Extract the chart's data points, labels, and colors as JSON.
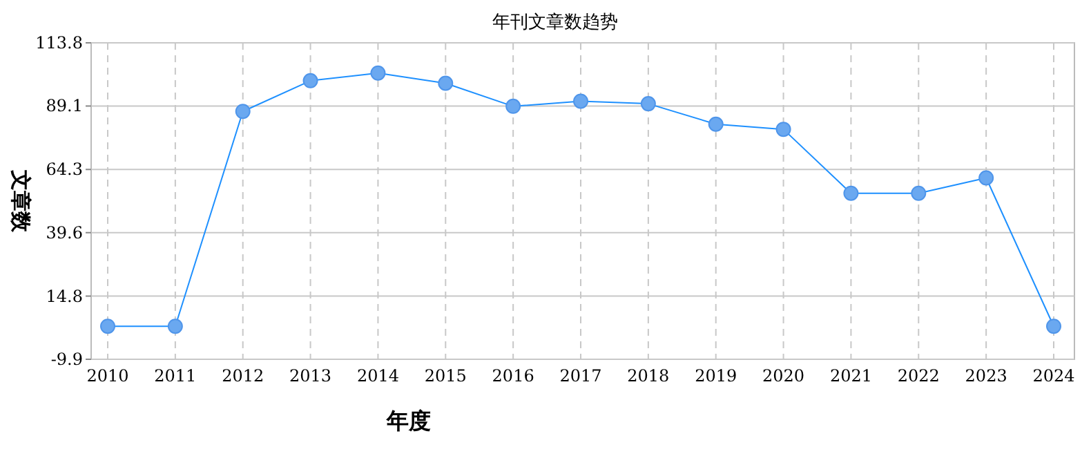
{
  "chart_data": {
    "type": "line",
    "title": "年刊文章数趋势",
    "xlabel": "年度",
    "ylabel": "文章数",
    "categories": [
      "2010",
      "2011",
      "2012",
      "2013",
      "2014",
      "2015",
      "2016",
      "2017",
      "2018",
      "2019",
      "2020",
      "2021",
      "2022",
      "2023",
      "2024"
    ],
    "series": [
      {
        "color": "#1e90ff",
        "values": [
          3,
          3,
          87,
          99,
          102,
          98,
          89,
          91,
          90,
          82,
          80,
          55,
          55,
          61,
          3
        ]
      }
    ],
    "ylim": [
      -9.9,
      113.8
    ],
    "yticks": [
      -9.9,
      14.8,
      39.6,
      64.3,
      89.1,
      113.8
    ],
    "grid": true,
    "marker": "circle",
    "line_style": "solid"
  }
}
